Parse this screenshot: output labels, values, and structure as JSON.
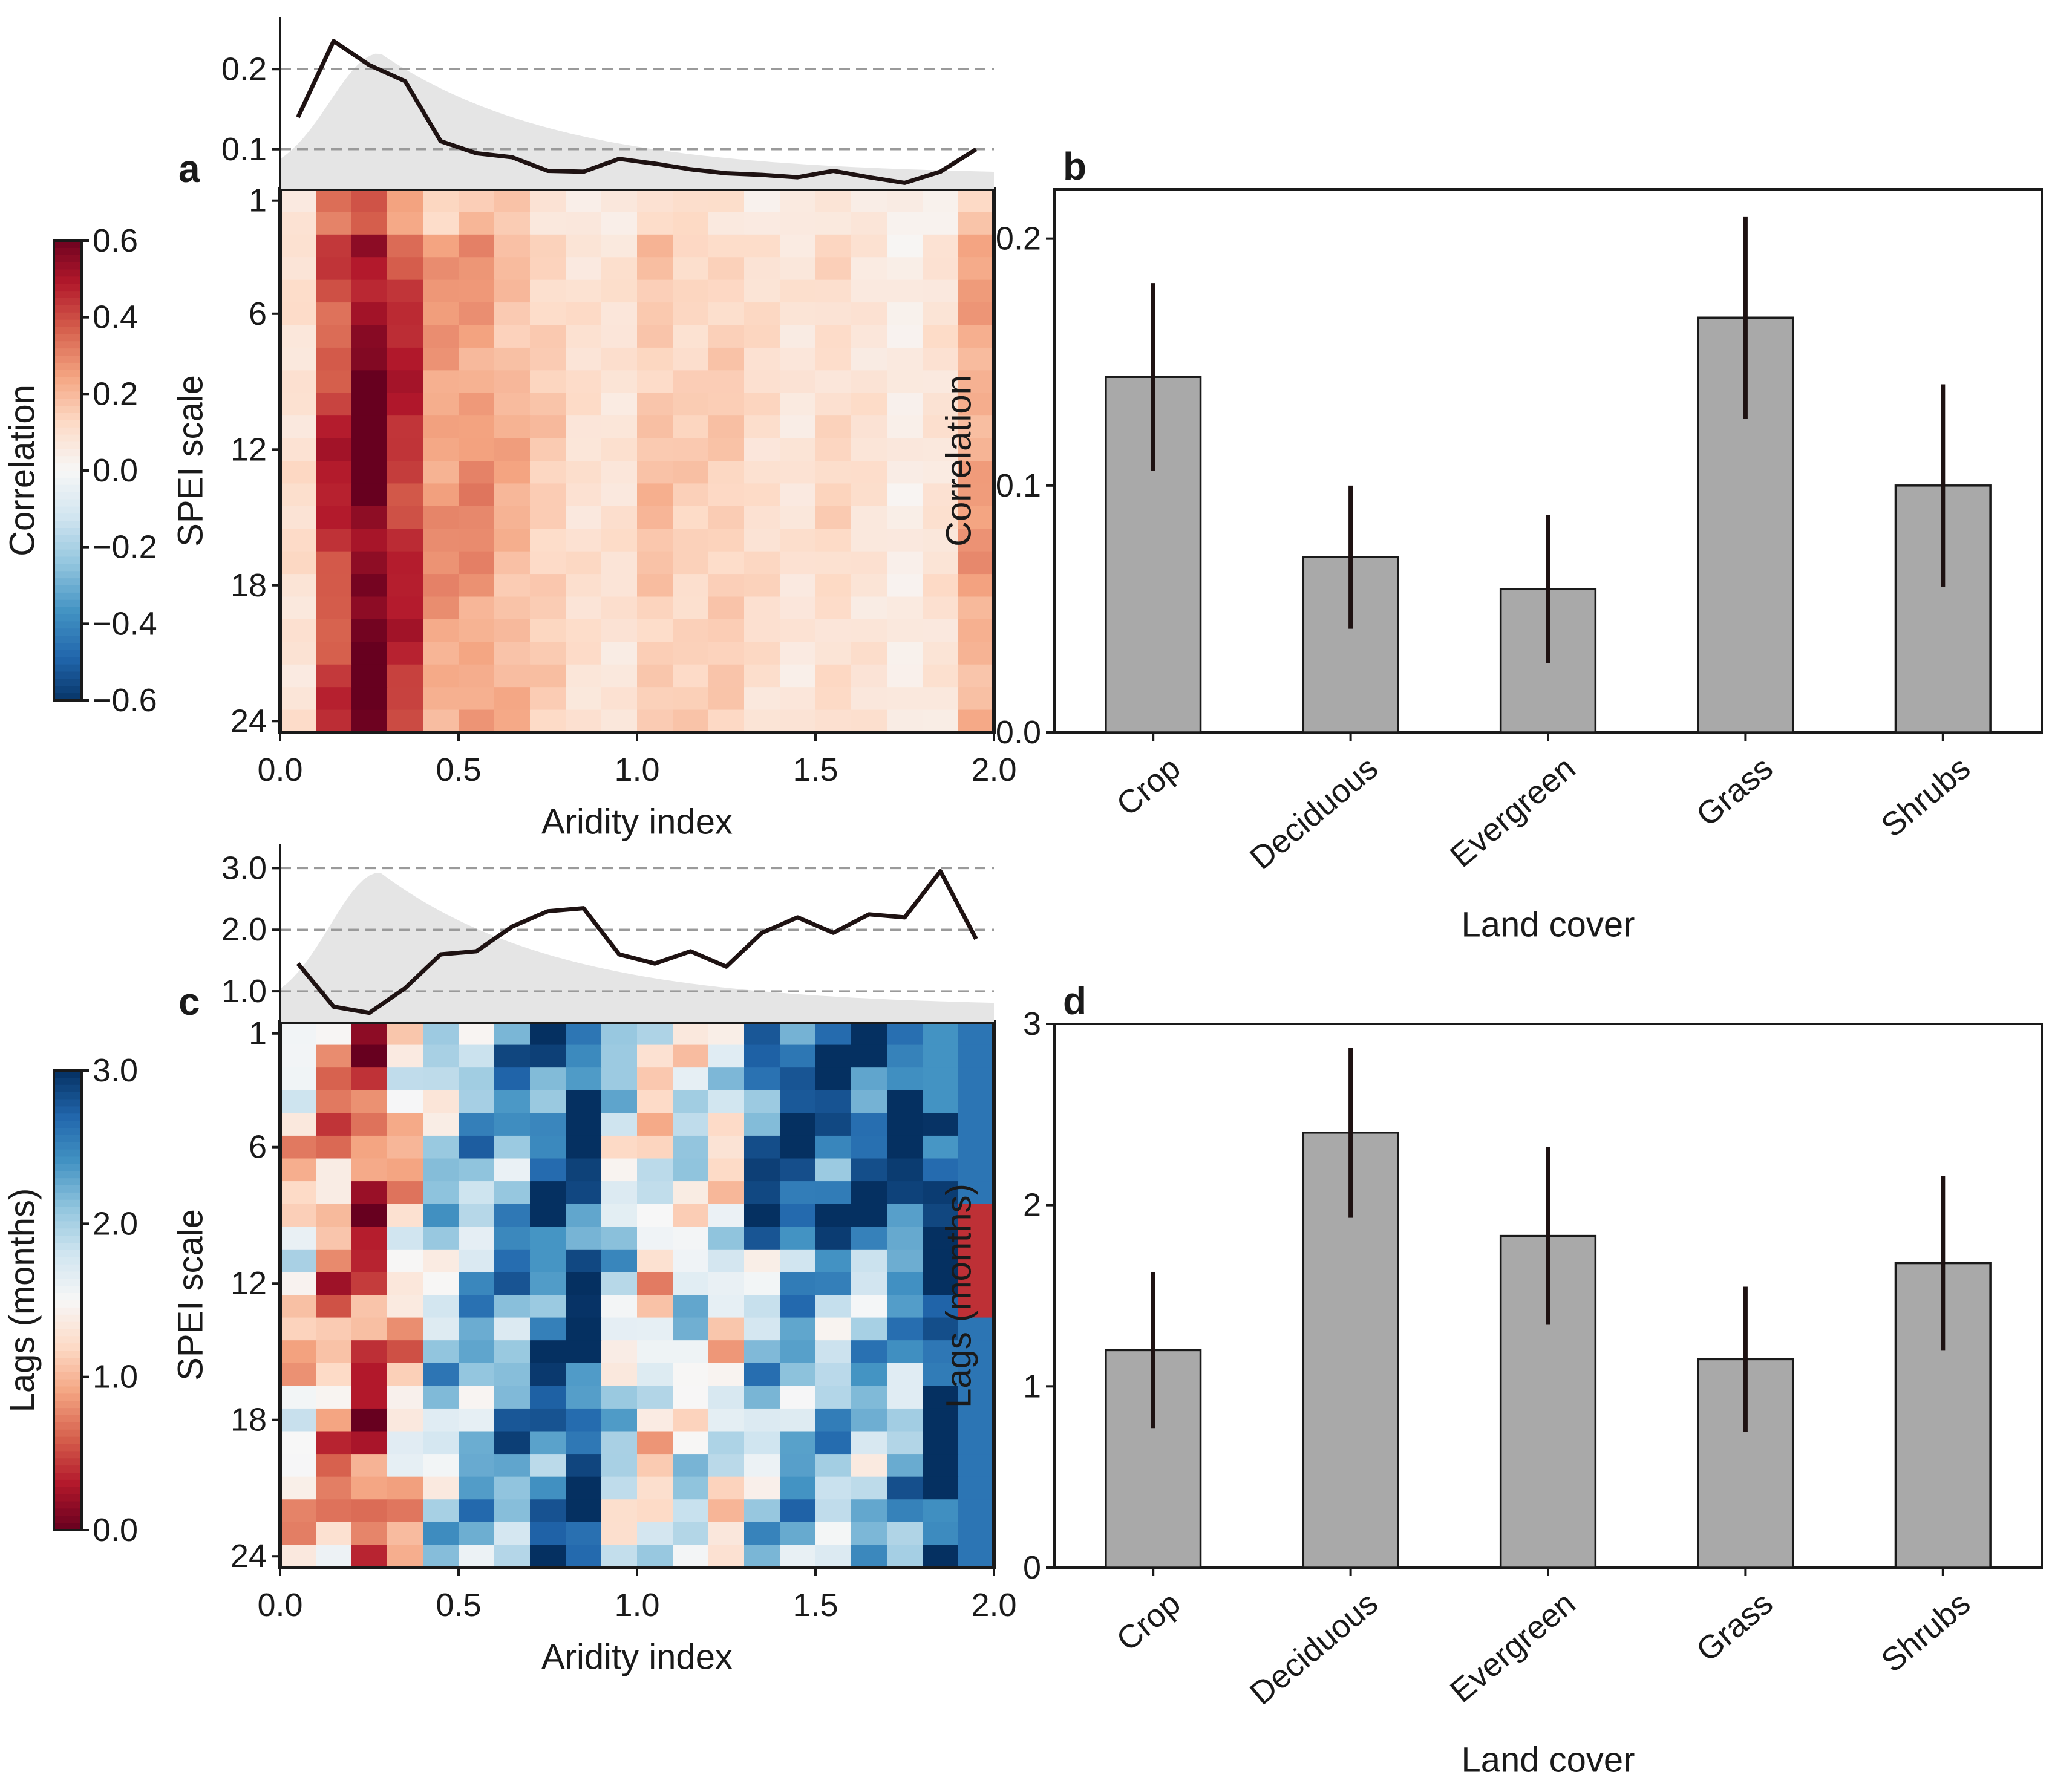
{
  "chart_data": [
    {
      "panel": "a",
      "type": "heatmap",
      "xlabel": "Aridity index",
      "ylabel": "SPEI scale",
      "x_ticks": [
        "0.0",
        "0.5",
        "1.0",
        "1.5",
        "2.0"
      ],
      "y_ticks": [
        "1",
        "6",
        "12",
        "18",
        "24"
      ],
      "xlim": [
        0,
        2
      ],
      "n_rows": 24,
      "n_cols": 20,
      "colorbar": {
        "label": "Correlation",
        "ticks": [
          "0.6",
          "0.4",
          "0.2",
          "0.0",
          "−0.2",
          "−0.4",
          "−0.6"
        ],
        "range": [
          -0.6,
          0.6
        ],
        "colormap": "RdBu_r"
      },
      "column_profile": [
        0.09,
        0.4,
        0.56,
        0.42,
        0.24,
        0.25,
        0.19,
        0.14,
        0.09,
        0.08,
        0.16,
        0.13,
        0.14,
        0.1,
        0.07,
        0.11,
        0.08,
        0.04,
        0.08,
        0.22
      ],
      "marginal": {
        "ticks": [
          "0.2",
          "0.1"
        ],
        "ylim": [
          0.05,
          0.25
        ],
        "x": [
          0.05,
          0.15,
          0.25,
          0.35,
          0.45,
          0.55,
          0.65,
          0.75,
          0.85,
          0.95,
          1.05,
          1.15,
          1.25,
          1.35,
          1.45,
          1.55,
          1.65,
          1.75,
          1.85,
          1.95
        ],
        "line": [
          0.14,
          0.235,
          0.205,
          0.185,
          0.11,
          0.095,
          0.09,
          0.073,
          0.072,
          0.088,
          0.082,
          0.075,
          0.07,
          0.068,
          0.065,
          0.073,
          0.065,
          0.058,
          0.072,
          0.1
        ]
      }
    },
    {
      "panel": "b",
      "type": "bar",
      "title": "",
      "xlabel": "Land cover",
      "ylabel": "Correlation",
      "categories": [
        "Crop",
        "Deciduous",
        "Evergreen",
        "Grass",
        "Shrubs"
      ],
      "values": [
        0.144,
        0.071,
        0.058,
        0.168,
        0.1
      ],
      "errors": [
        0.038,
        0.029,
        0.03,
        0.041,
        0.041
      ],
      "ylim": [
        0,
        0.22
      ],
      "y_ticks": [
        "0.0",
        "0.1",
        "0.2"
      ],
      "y_tick_values": [
        0,
        0.1,
        0.2
      ]
    },
    {
      "panel": "c",
      "type": "heatmap",
      "xlabel": "Aridity index",
      "ylabel": "SPEI scale",
      "x_ticks": [
        "0.0",
        "0.5",
        "1.0",
        "1.5",
        "2.0"
      ],
      "y_ticks": [
        "1",
        "6",
        "12",
        "18",
        "24"
      ],
      "xlim": [
        0,
        2
      ],
      "n_rows": 24,
      "n_cols": 20,
      "colorbar": {
        "label": "Lags (months)",
        "ticks": [
          "3.0",
          "2.0",
          "1.0",
          "0.0"
        ],
        "range": [
          0,
          3
        ],
        "colormap": "RdBu"
      },
      "column_profile": [
        1.3,
        0.9,
        0.5,
        1.2,
        1.9,
        2.1,
        2.3,
        2.6,
        2.8,
        1.8,
        1.4,
        1.7,
        1.5,
        2.4,
        2.6,
        2.5,
        2.5,
        2.6,
        3.0,
        2.2
      ],
      "marginal": {
        "ticks": [
          "3.0",
          "2.0",
          "1.0"
        ],
        "ylim": [
          0.5,
          3.2
        ],
        "x": [
          0.05,
          0.15,
          0.25,
          0.35,
          0.45,
          0.55,
          0.65,
          0.75,
          0.85,
          0.95,
          1.05,
          1.15,
          1.25,
          1.35,
          1.45,
          1.55,
          1.65,
          1.75,
          1.85,
          1.95
        ],
        "line": [
          1.45,
          0.75,
          0.65,
          1.05,
          1.6,
          1.65,
          2.05,
          2.3,
          2.35,
          1.6,
          1.45,
          1.65,
          1.4,
          1.95,
          2.2,
          1.95,
          2.25,
          2.2,
          2.95,
          1.85
        ]
      }
    },
    {
      "panel": "d",
      "type": "bar",
      "title": "",
      "xlabel": "Land cover",
      "ylabel": "Lags (months)",
      "categories": [
        "Crop",
        "Deciduous",
        "Evergreen",
        "Grass",
        "Shrubs"
      ],
      "values": [
        1.2,
        2.4,
        1.83,
        1.15,
        1.68
      ],
      "errors": [
        0.43,
        0.47,
        0.49,
        0.4,
        0.48
      ],
      "ylim": [
        0,
        3
      ],
      "y_ticks": [
        "0",
        "1",
        "2",
        "3"
      ],
      "y_tick_values": [
        0,
        1,
        2,
        3
      ]
    }
  ]
}
